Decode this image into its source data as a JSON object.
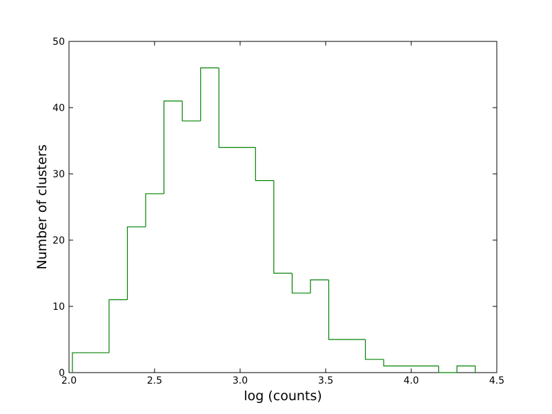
{
  "chart_data": {
    "type": "histogram",
    "xlabel": "log (counts)",
    "ylabel": "Number of clusters",
    "bins": [
      2.02,
      2.127,
      2.234,
      2.341,
      2.448,
      2.555,
      2.662,
      2.769,
      2.876,
      2.983,
      3.09,
      3.197,
      3.304,
      3.411,
      3.518,
      3.625,
      3.732,
      3.839,
      3.946,
      4.053,
      4.16,
      4.267,
      4.374
    ],
    "counts": [
      3,
      3,
      11,
      22,
      27,
      41,
      38,
      46,
      34,
      34,
      29,
      15,
      12,
      14,
      5,
      5,
      2,
      1,
      1,
      1,
      0,
      1
    ],
    "color": "#008000",
    "histtype": "step",
    "xlim": [
      2.0,
      4.5
    ],
    "ylim": [
      0,
      50
    ],
    "xticks": [
      {
        "value": 2.0,
        "label": "2.0"
      },
      {
        "value": 2.5,
        "label": "2.5"
      },
      {
        "value": 3.0,
        "label": "3.0"
      },
      {
        "value": 3.5,
        "label": "3.5"
      },
      {
        "value": 4.0,
        "label": "4.0"
      },
      {
        "value": 4.5,
        "label": "4.5"
      }
    ],
    "yticks": [
      0,
      10,
      20,
      30,
      40,
      50
    ]
  }
}
